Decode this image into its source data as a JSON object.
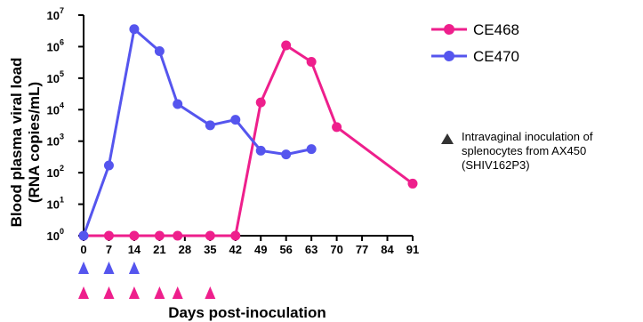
{
  "chart_data": {
    "type": "line",
    "ylabel_line1": "Blood plasma viral load",
    "ylabel_line2": "(RNA copies/mL)",
    "xlabel": "Days post-inoculation",
    "y_scale": "log10",
    "ylim": [
      1,
      10000000
    ],
    "y_ticks": [
      {
        "value": 1,
        "base": "10",
        "exp": "0"
      },
      {
        "value": 10,
        "base": "10",
        "exp": "1"
      },
      {
        "value": 100,
        "base": "10",
        "exp": "2"
      },
      {
        "value": 1000,
        "base": "10",
        "exp": "3"
      },
      {
        "value": 10000,
        "base": "10",
        "exp": "4"
      },
      {
        "value": 100000,
        "base": "10",
        "exp": "5"
      },
      {
        "value": 1000000,
        "base": "10",
        "exp": "6"
      },
      {
        "value": 10000000,
        "base": "10",
        "exp": "7"
      }
    ],
    "x_ticks": [
      0,
      7,
      14,
      21,
      28,
      35,
      42,
      49,
      56,
      63,
      70,
      77,
      84,
      91
    ],
    "xlim": [
      0,
      91
    ],
    "series": [
      {
        "name": "CE468",
        "color": "#ee1f8c",
        "x": [
          0,
          7,
          14,
          21,
          26,
          35,
          42,
          49,
          56,
          63,
          70,
          91
        ],
        "y": [
          1,
          1,
          1,
          1,
          1,
          1,
          1,
          17000,
          1100000,
          330000,
          2800,
          45
        ]
      },
      {
        "name": "CE470",
        "color": "#5555ee",
        "x": [
          0,
          7,
          14,
          21,
          26,
          35,
          42,
          49,
          56,
          63
        ],
        "y": [
          1,
          170,
          3600000,
          720000,
          15000,
          3200,
          4800,
          500,
          380,
          560
        ]
      }
    ],
    "inoculations": [
      {
        "series": "CE470",
        "color": "#5555ee",
        "days": [
          0,
          7,
          14
        ]
      },
      {
        "series": "CE468",
        "color": "#ee1f8c",
        "days": [
          0,
          7,
          14,
          21,
          26,
          35
        ]
      }
    ],
    "legend_placement": "top-right",
    "annotation": {
      "line1": "Intravaginal inoculation of",
      "line2": "splenocytes from AX450",
      "line3": "(SHIV162P3)",
      "marker_color": "#333333"
    }
  }
}
